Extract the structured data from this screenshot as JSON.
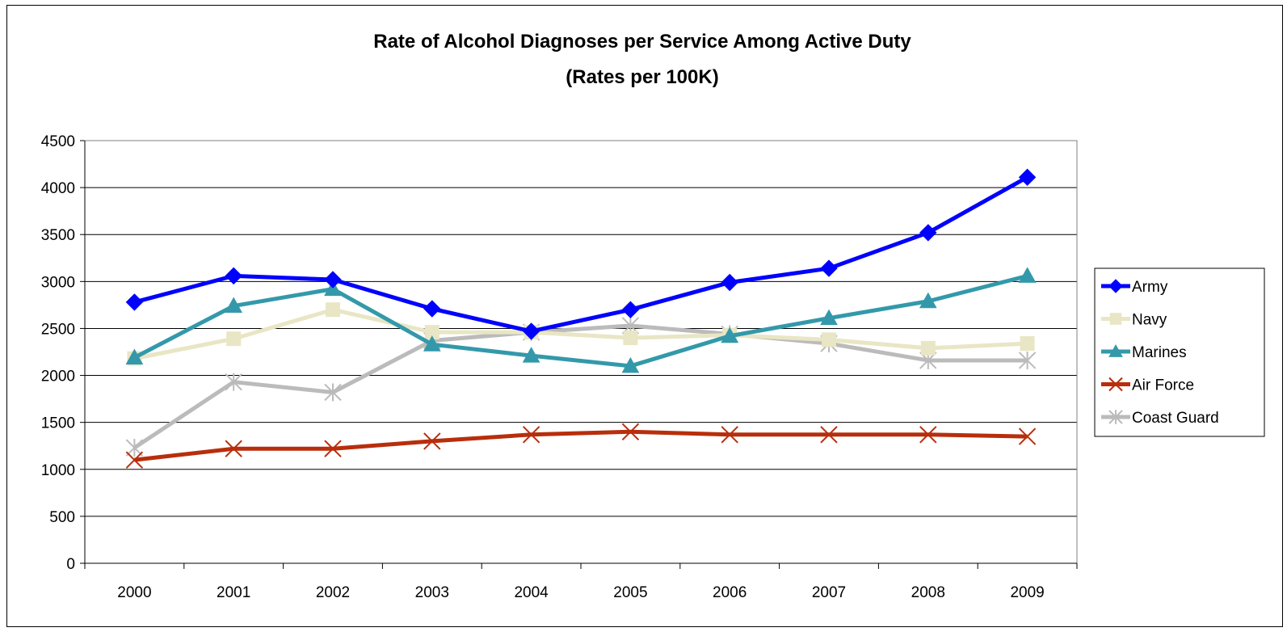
{
  "chart_data": {
    "type": "line",
    "title": "Rate of Alcohol Diagnoses per Service Among Active Duty",
    "subtitle": "(Rates per 100K)",
    "xlabel": "",
    "ylabel": "",
    "categories": [
      "2000",
      "2001",
      "2002",
      "2003",
      "2004",
      "2005",
      "2006",
      "2007",
      "2008",
      "2009"
    ],
    "ylim": [
      0,
      4500
    ],
    "yticks": [
      0,
      500,
      1000,
      1500,
      2000,
      2500,
      3000,
      3500,
      4000,
      4500
    ],
    "grid": true,
    "legend_position": "right",
    "series": [
      {
        "name": "Army",
        "color": "#0000FF",
        "marker": "diamond",
        "values": [
          2780,
          3060,
          3020,
          2710,
          2470,
          2700,
          2990,
          3140,
          3520,
          4110
        ]
      },
      {
        "name": "Navy",
        "color": "#E8E6C4",
        "marker": "square",
        "values": [
          2180,
          2390,
          2700,
          2460,
          2460,
          2400,
          2430,
          2380,
          2290,
          2340
        ]
      },
      {
        "name": "Marines",
        "color": "#3399AA",
        "marker": "triangle",
        "values": [
          2190,
          2740,
          2920,
          2330,
          2210,
          2100,
          2420,
          2610,
          2790,
          3060
        ]
      },
      {
        "name": "Air Force",
        "color": "#B82E0C",
        "marker": "x",
        "values": [
          1100,
          1220,
          1220,
          1300,
          1370,
          1400,
          1370,
          1370,
          1370,
          1350
        ]
      },
      {
        "name": "Coast Guard",
        "color": "#BBBBBB",
        "marker": "star",
        "values": [
          1230,
          1930,
          1820,
          2370,
          2460,
          2530,
          2440,
          2340,
          2160,
          2160
        ]
      }
    ]
  }
}
